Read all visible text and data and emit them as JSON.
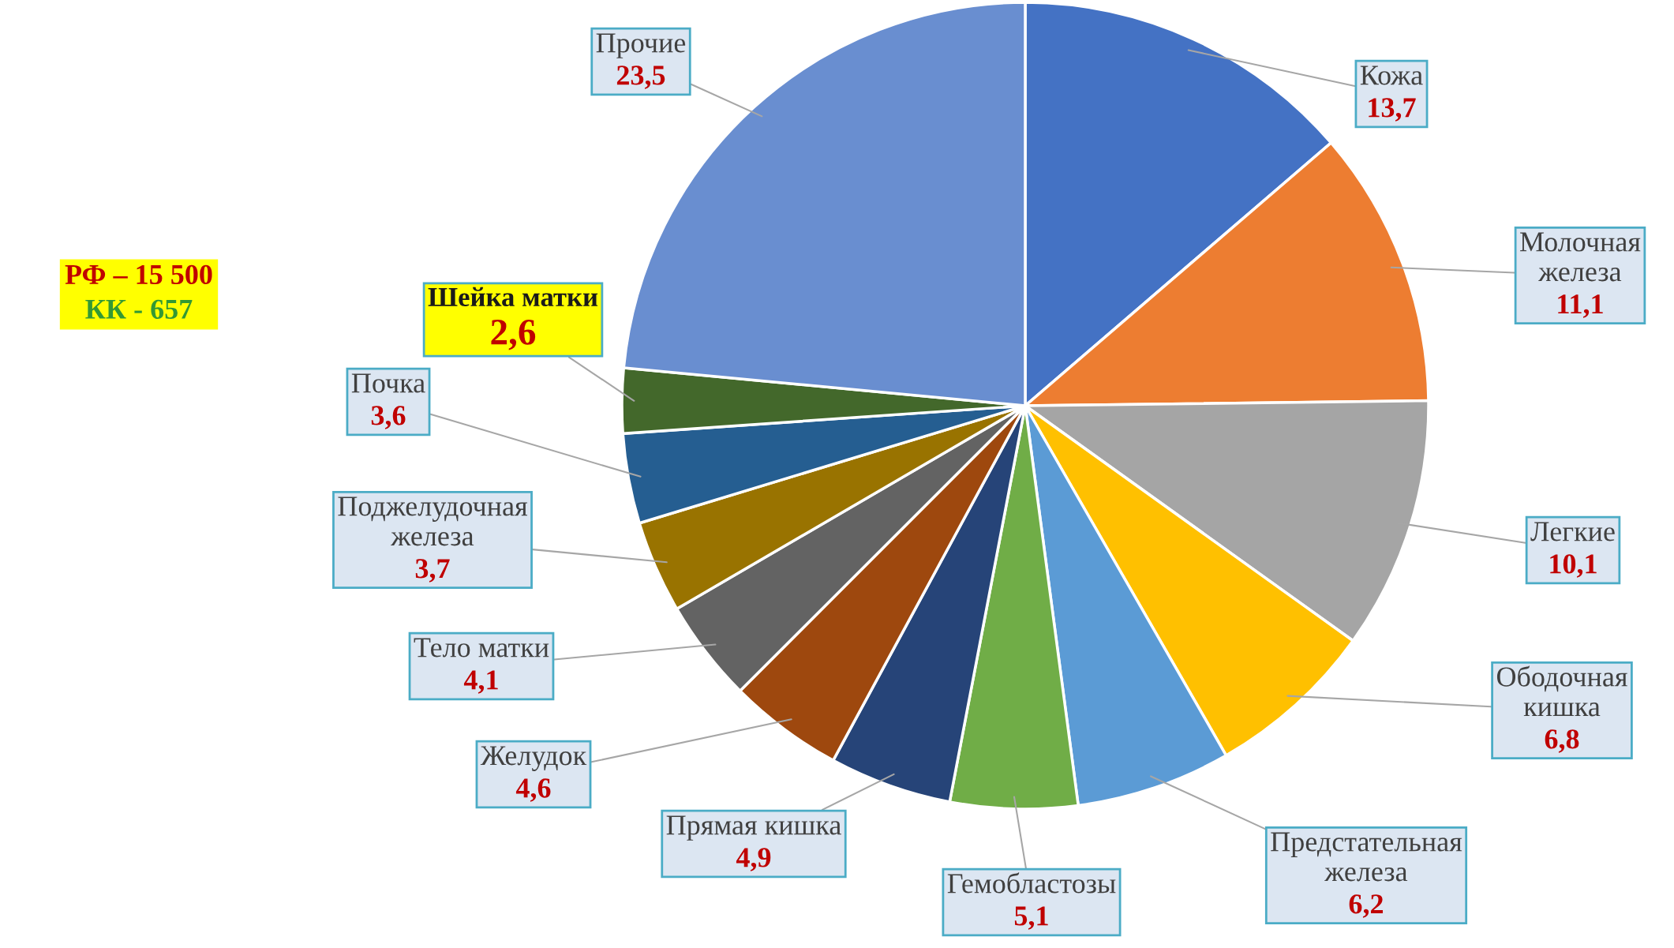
{
  "chart_data": {
    "type": "pie",
    "categories": [
      "Кожа",
      "Молочная железа",
      "Легкие",
      "Ободочная кишка",
      "Предстательная железа",
      "Гемобластозы",
      "Прямая кишка",
      "Желудок",
      "Тело матки",
      "Поджелудочная железа",
      "Почка",
      "Шейка матки",
      "Прочие"
    ],
    "values": [
      13.7,
      11.1,
      10.1,
      6.8,
      6.2,
      5.1,
      4.9,
      4.6,
      4.1,
      3.7,
      3.6,
      2.6,
      23.5
    ],
    "value_labels": [
      "13,7",
      "11,1",
      "10,1",
      "6,8",
      "6,2",
      "5,1",
      "4,9",
      "4,6",
      "4,1",
      "3,7",
      "3,6",
      "2,6",
      "23,5"
    ],
    "colors": [
      "#4472c4",
      "#ed7d31",
      "#a5a5a5",
      "#ffc000",
      "#5b9bd5",
      "#70ad47",
      "#264478",
      "#9e480e",
      "#636363",
      "#997300",
      "#255e91",
      "#43682b",
      "#698ed0"
    ],
    "annotations": [
      "РФ – 15 500",
      "КК - 657"
    ]
  }
}
